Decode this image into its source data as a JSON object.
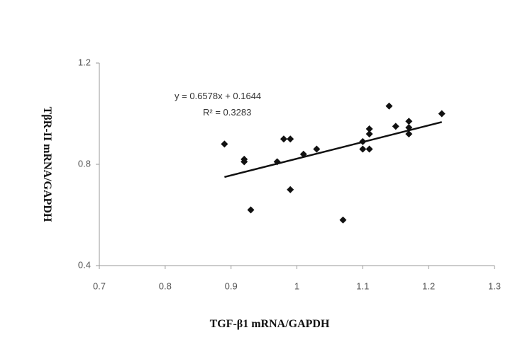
{
  "chart_data": {
    "type": "scatter",
    "x_label": "TGF-β1 mRNA/GAPDH",
    "y_label": "TβR-II mRNA/GAPDH",
    "x": [
      0.89,
      0.92,
      0.92,
      0.93,
      0.97,
      0.98,
      0.99,
      0.99,
      1.01,
      1.03,
      1.07,
      1.1,
      1.1,
      1.11,
      1.11,
      1.11,
      1.14,
      1.15,
      1.17,
      1.17,
      1.17,
      1.22
    ],
    "values": [
      0.88,
      0.82,
      0.81,
      0.62,
      0.81,
      0.9,
      0.9,
      0.7,
      0.84,
      0.86,
      0.58,
      0.89,
      0.86,
      0.94,
      0.92,
      0.86,
      1.03,
      0.95,
      0.97,
      0.945,
      0.92,
      1.0
    ],
    "color": "#111111",
    "xlim": [
      0.7,
      1.3
    ],
    "xticks": [
      0.7,
      0.8,
      0.9,
      1,
      1.1,
      1.2,
      1.3
    ],
    "ylim": [
      0.4,
      1.2
    ],
    "yticks": [
      0.4,
      0.8,
      1.2
    ],
    "trendline": {
      "slope": 0.6578,
      "intercept": 0.1644,
      "equation": "y = 0.6578x + 0.1644",
      "r2": "R² = 0.3283"
    }
  }
}
